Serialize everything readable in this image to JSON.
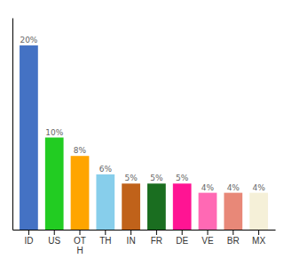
{
  "chart_data": {
    "type": "bar",
    "categories": [
      "ID",
      "US",
      "OT\nH",
      "TH",
      "IN",
      "FR",
      "DE",
      "VE",
      "BR",
      "MX"
    ],
    "values": [
      20,
      10,
      8,
      6,
      5,
      5,
      5,
      4,
      4,
      4
    ],
    "value_labels": [
      "20%",
      "10%",
      "8%",
      "6%",
      "5%",
      "5%",
      "5%",
      "4%",
      "4%",
      "4%"
    ],
    "colors": [
      "#4472c4",
      "#22cc22",
      "#ffa500",
      "#87ceeb",
      "#c0621a",
      "#1a6e20",
      "#ff1493",
      "#ff69b4",
      "#e88878",
      "#f5f0d8"
    ],
    "ylim": [
      0,
      23
    ],
    "grid": false,
    "data_labels": true,
    "tick_labels": "x"
  }
}
